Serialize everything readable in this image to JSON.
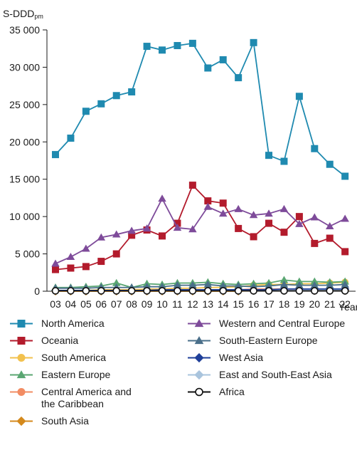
{
  "chart_data": {
    "type": "line",
    "ylabel": "S-DDD",
    "ylabel_sub": "pm",
    "xlabel": "Year",
    "x": [
      "03",
      "04",
      "05",
      "06",
      "07",
      "08",
      "09",
      "10",
      "11",
      "12",
      "13",
      "14",
      "15",
      "16",
      "17",
      "18",
      "19",
      "20",
      "21",
      "22"
    ],
    "ylim": [
      0,
      35000
    ],
    "yticks": [
      0,
      5000,
      10000,
      15000,
      20000,
      25000,
      30000,
      35000
    ],
    "ytick_labels": [
      "0",
      "5 000",
      "10 000",
      "15 000",
      "20 000",
      "25 000",
      "30 000",
      "35 000"
    ],
    "grid": false,
    "legend_position": "bottom",
    "series": [
      {
        "name": "North America",
        "color": "#1f8ab0",
        "marker": "square",
        "values": [
          18300,
          20500,
          24100,
          25100,
          26200,
          26700,
          32800,
          32300,
          32900,
          33200,
          29900,
          31000,
          28600,
          33300,
          18200,
          17400,
          26100,
          19100,
          17000,
          15400
        ]
      },
      {
        "name": "Oceania",
        "color": "#b31b2c",
        "marker": "square",
        "values": [
          2900,
          3100,
          3300,
          4000,
          5000,
          7500,
          8200,
          7400,
          9100,
          14200,
          12100,
          11800,
          8400,
          7300,
          9100,
          7900,
          10000,
          6400,
          7100,
          5300
        ]
      },
      {
        "name": "South America",
        "color": "#f2c14e",
        "marker": "circle",
        "values": [
          100,
          100,
          100,
          200,
          200,
          200,
          300,
          300,
          400,
          400,
          500,
          500,
          600,
          800,
          900,
          900,
          1000,
          1000,
          1100,
          1200
        ]
      },
      {
        "name": "Eastern Europe",
        "color": "#5aa672",
        "marker": "triangle",
        "values": [
          500,
          500,
          600,
          700,
          1100,
          500,
          1000,
          900,
          1100,
          1100,
          1200,
          1000,
          900,
          1000,
          1100,
          1500,
          1300,
          1300,
          1200,
          1300
        ]
      },
      {
        "name": "Central America and the Caribbean",
        "color": "#f28c63",
        "marker": "circle",
        "values": [
          100,
          100,
          100,
          100,
          100,
          100,
          200,
          200,
          200,
          200,
          200,
          200,
          200,
          300,
          300,
          300,
          300,
          300,
          300,
          300
        ]
      },
      {
        "name": "South Asia",
        "color": "#d4891c",
        "marker": "diamond",
        "values": [
          0,
          0,
          0,
          0,
          0,
          0,
          0,
          0,
          0,
          0,
          0,
          0,
          0,
          100,
          100,
          100,
          100,
          100,
          100,
          100
        ]
      },
      {
        "name": "Western and Central Europe",
        "color": "#7e4b9a",
        "marker": "triangle",
        "values": [
          3700,
          4600,
          5700,
          7200,
          7600,
          8100,
          8400,
          12400,
          8500,
          8300,
          11300,
          10400,
          11000,
          10200,
          10400,
          11000,
          9000,
          9900,
          8700,
          9700
        ]
      },
      {
        "name": "South-Eastern Europe",
        "color": "#4a6f8a",
        "marker": "triangle",
        "values": [
          400,
          400,
          400,
          500,
          500,
          500,
          600,
          600,
          800,
          800,
          900,
          700,
          700,
          600,
          700,
          900,
          800,
          800,
          800,
          900
        ]
      },
      {
        "name": "West Asia",
        "color": "#1f3f99",
        "marker": "diamond",
        "values": [
          100,
          100,
          100,
          100,
          100,
          100,
          100,
          200,
          200,
          200,
          200,
          200,
          200,
          200,
          200,
          300,
          300,
          300,
          300,
          300
        ]
      },
      {
        "name": "East and South-East Asia",
        "color": "#a9c4dd",
        "marker": "diamond",
        "values": [
          100,
          100,
          100,
          100,
          100,
          100,
          100,
          100,
          100,
          100,
          100,
          100,
          100,
          100,
          100,
          100,
          100,
          200,
          200,
          200
        ]
      },
      {
        "name": "Africa",
        "color": "#111111",
        "marker": "circle-open",
        "values": [
          50,
          50,
          50,
          50,
          50,
          50,
          50,
          50,
          50,
          50,
          50,
          50,
          50,
          50,
          50,
          50,
          50,
          50,
          50,
          50
        ]
      }
    ]
  }
}
